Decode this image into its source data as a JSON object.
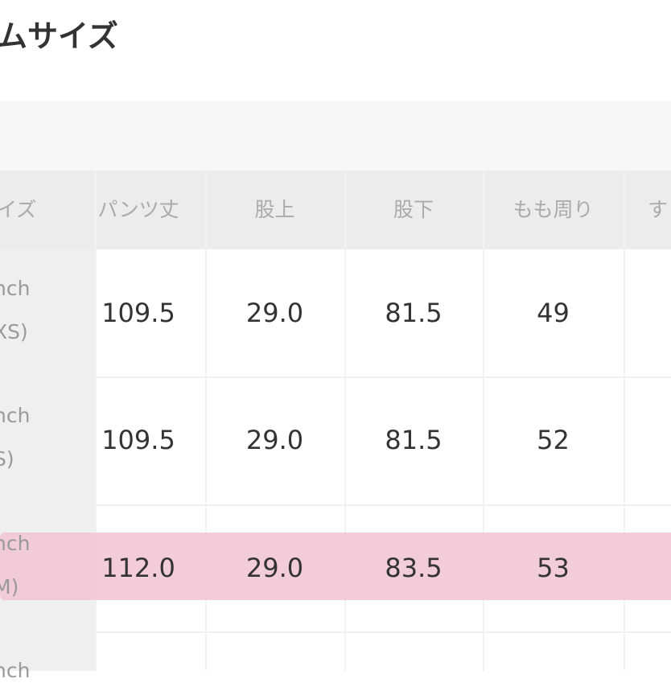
{
  "title": "ムサイズ",
  "header": [
    "イズ",
    "パンツ丈",
    "股上",
    "股下",
    "もも周り",
    "す"
  ],
  "rows": [
    {
      "label1": "nch",
      "label2": "XS)",
      "values": [
        "109.5",
        "29.0",
        "81.5",
        "49"
      ]
    },
    {
      "label1": "nch",
      "label2": "S)",
      "values": [
        "109.5",
        "29.0",
        "81.5",
        "52"
      ]
    },
    {
      "label1": "nch",
      "label2": "M)",
      "values": [
        "112.0",
        "29.0",
        "83.5",
        "53"
      ],
      "highlighted": true
    },
    {
      "label1": "nch"
    }
  ],
  "colors": {
    "highlight": "#f1c6d4",
    "header_bg": "#ececec"
  }
}
